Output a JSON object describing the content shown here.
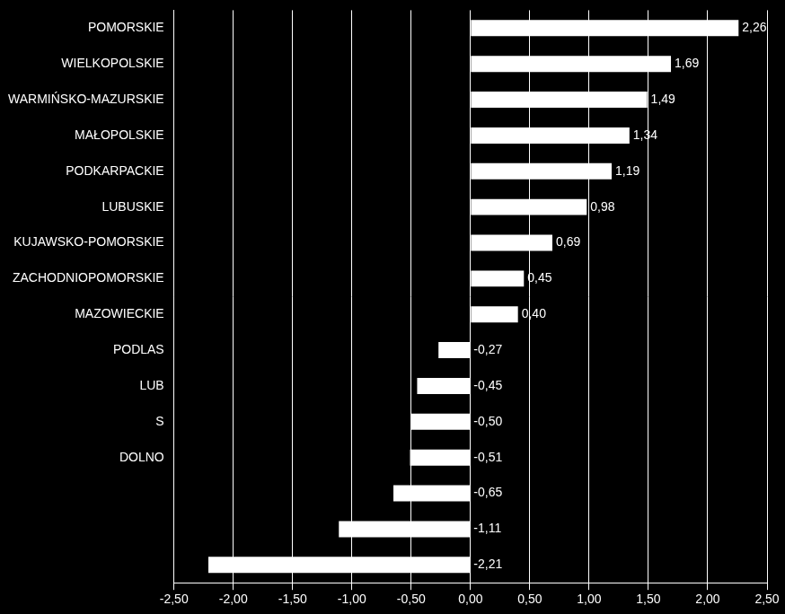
{
  "chart_data": {
    "type": "bar",
    "orientation": "horizontal",
    "categories": [
      "POMORSKIE",
      "WIELKOPOLSKIE",
      "WARMIŃSKO-MAZURSKIE",
      "MAŁOPOLSKIE",
      "PODKARPACKIE",
      "LUBUSKIE",
      "KUJAWSKO-POMORSKIE",
      "ZACHODNIOPOMORSKIE",
      "MAZOWIECKIE",
      "PODLAS",
      "LUB",
      "S",
      "DOLNO",
      null,
      null,
      null
    ],
    "values": [
      2.26,
      1.69,
      1.49,
      1.34,
      1.19,
      0.98,
      0.69,
      0.45,
      0.4,
      -0.27,
      -0.45,
      -0.5,
      -0.51,
      -0.65,
      -1.11,
      -2.21
    ],
    "value_labels": [
      "2,26",
      "1,69",
      "1,49",
      "1,34",
      "1,19",
      "0,98",
      "0,69",
      "0,45",
      "0,40",
      "-0,27",
      "-0,45",
      "-0,50",
      "-0,51",
      "-0,65",
      "-1,11",
      "-2,21"
    ],
    "data_labels": true,
    "color": "#ffffff",
    "xlim": [
      -2.5,
      2.5
    ],
    "xticks": [
      {
        "value": -2.5,
        "label": "-2,50"
      },
      {
        "value": -2,
        "label": "-2,00"
      },
      {
        "value": -1.5,
        "label": "-1,50"
      },
      {
        "value": -1,
        "label": "-1,00"
      },
      {
        "value": -0.5,
        "label": "-0,50"
      },
      {
        "value": 0,
        "label": "0,00"
      },
      {
        "value": 0.5,
        "label": "0,50"
      },
      {
        "value": 1,
        "label": "1,00"
      },
      {
        "value": 1.5,
        "label": "1,50"
      },
      {
        "value": 2,
        "label": "2,00"
      },
      {
        "value": 2.5,
        "label": "2,50"
      }
    ],
    "grid": true
  }
}
